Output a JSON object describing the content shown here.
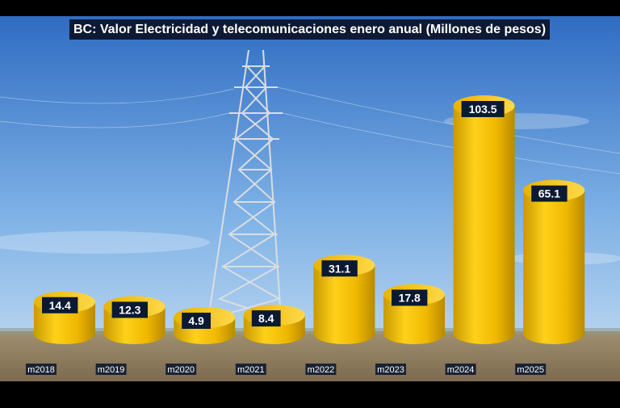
{
  "chart_data": {
    "type": "bar",
    "title": "BC: Valor Electricidad y telecomunicaciones enero anual (Millones de pesos)",
    "categories": [
      "m2018",
      "m2019",
      "m2020",
      "m2021",
      "m2022",
      "m2023",
      "m2024",
      "m2025"
    ],
    "values": [
      14.4,
      12.3,
      4.9,
      8.4,
      31.1,
      17.8,
      103.5,
      65.1
    ],
    "value_labels": [
      "14.4",
      "12.3",
      "4.9",
      "8.4",
      "31.1",
      "17.8",
      "103.5",
      "65.1"
    ],
    "xlabel": "",
    "ylabel": "",
    "bar_style": "3d-cylinder",
    "bar_color": "#f2c200",
    "grid": false,
    "legend": "none",
    "background": "photo of electricity transmission tower under blue sky"
  }
}
